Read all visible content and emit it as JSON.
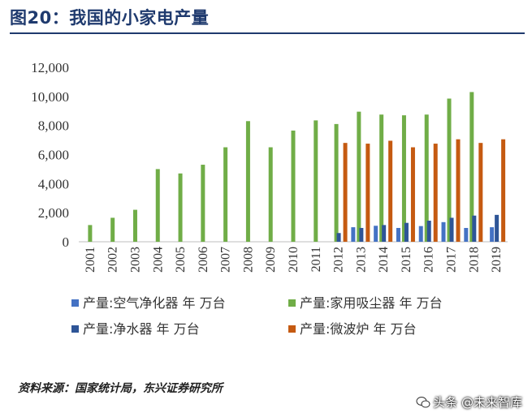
{
  "page_title": "图20：我国的小家电产量",
  "source_note": "资料来源：国家统计局，东兴证券研究所",
  "watermark": "头条 @未来智库",
  "colors": {
    "title": "#1f3a6e",
    "aircon": "#4472c4",
    "vacuum": "#70ad47",
    "purifier": "#2e5597",
    "microwave": "#c55a11"
  },
  "chart_data": {
    "type": "bar",
    "title": "",
    "xlabel": "",
    "ylabel": "",
    "ylim": [
      0,
      12000
    ],
    "yticks": [
      0,
      2000,
      4000,
      6000,
      8000,
      10000,
      12000
    ],
    "ytick_labels": [
      "0",
      "2,000",
      "4,000",
      "6,000",
      "8,000",
      "10,000",
      "12,000"
    ],
    "categories": [
      "2001",
      "2002",
      "2003",
      "2004",
      "2005",
      "2006",
      "2007",
      "2008",
      "2009",
      "2010",
      "2011",
      "2012",
      "2013",
      "2014",
      "2015",
      "2016",
      "2017",
      "2018",
      "2019"
    ],
    "grid": false,
    "legend_position": "bottom",
    "series": [
      {
        "name": "产量:空气净化器 年 万台",
        "color": "#4472c4",
        "values": [
          null,
          null,
          null,
          null,
          null,
          null,
          null,
          null,
          null,
          null,
          null,
          null,
          1000,
          1100,
          950,
          1080,
          1350,
          950,
          1000
        ]
      },
      {
        "name": "产量:家用吸尘器 年 万台",
        "color": "#70ad47",
        "values": [
          1150,
          1650,
          2200,
          5000,
          4700,
          5300,
          6500,
          8300,
          6500,
          7650,
          8350,
          8100,
          8950,
          8750,
          8700,
          8750,
          9850,
          10300,
          null
        ]
      },
      {
        "name": "产量:净水器 年 万台",
        "color": "#2e5597",
        "values": [
          null,
          null,
          null,
          null,
          null,
          null,
          null,
          null,
          null,
          null,
          null,
          600,
          950,
          1150,
          1300,
          1450,
          1650,
          1800,
          1850
        ]
      },
      {
        "name": "产量:微波炉 年 万台",
        "color": "#c55a11",
        "values": [
          null,
          null,
          null,
          null,
          null,
          null,
          null,
          null,
          null,
          null,
          null,
          6800,
          6750,
          6950,
          6500,
          6750,
          7050,
          6800,
          7050
        ]
      }
    ]
  }
}
